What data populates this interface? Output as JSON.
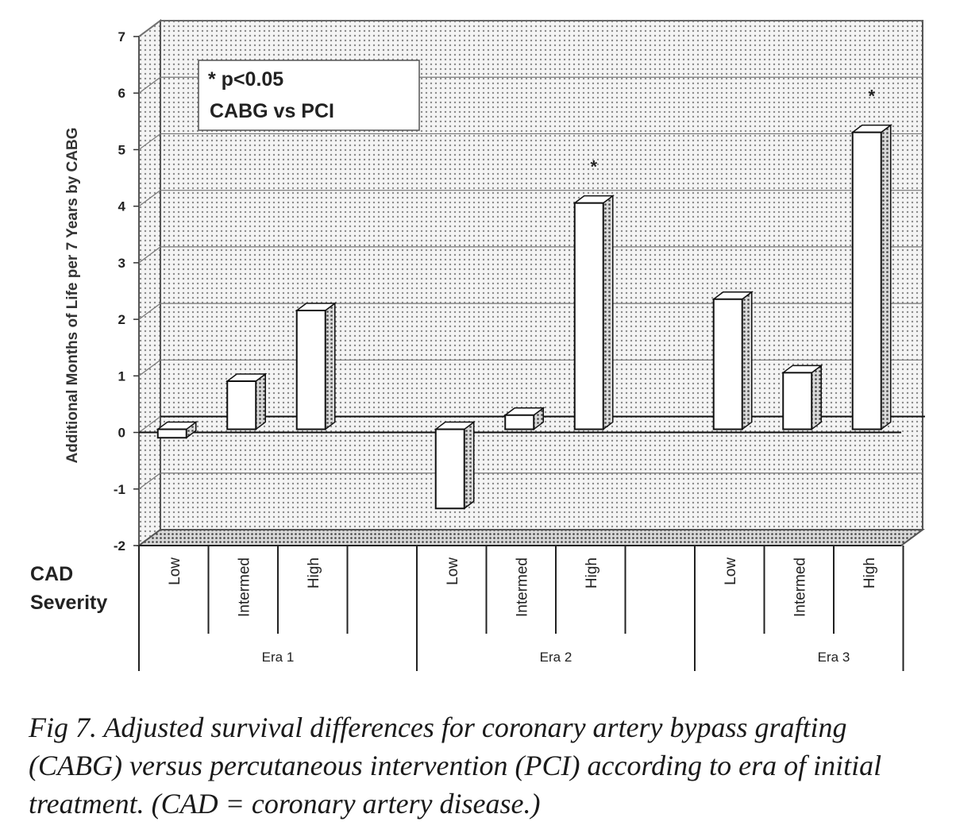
{
  "chart_data": {
    "type": "bar",
    "ylabel": "Additional Months of Life per 7 Years by CABG",
    "ylim": [
      -2,
      7
    ],
    "yticks": [
      "7",
      "6",
      "5",
      "4",
      "3",
      "2",
      "1",
      "0",
      "-1",
      "-2"
    ],
    "grid": true,
    "legend": {
      "position": "top-left",
      "line1": "* p<0.05",
      "line2": "CABG vs PCI"
    },
    "row_label": {
      "line1": "CAD",
      "line2": "Severity"
    },
    "groups": [
      {
        "name": "Era 1",
        "categories": [
          "Low",
          "Intermed",
          "High"
        ],
        "values": [
          -0.15,
          0.85,
          2.1
        ],
        "significant": [
          false,
          false,
          false
        ]
      },
      {
        "name": "Era 2",
        "categories": [
          "Low",
          "Intermed",
          "High"
        ],
        "values": [
          -1.4,
          0.25,
          4.0
        ],
        "significant": [
          false,
          false,
          true
        ]
      },
      {
        "name": "Era 3",
        "categories": [
          "Low",
          "Intermed",
          "High"
        ],
        "values": [
          2.3,
          1.0,
          5.25
        ],
        "significant": [
          false,
          false,
          true
        ]
      }
    ],
    "significance_marker": "*"
  },
  "caption": "Fig 7.  Adjusted survival differences for coronary artery bypass grafting (CABG) versus percutaneous intervention (PCI) according to era of initial treatment. (CAD = coronary artery disease.)"
}
